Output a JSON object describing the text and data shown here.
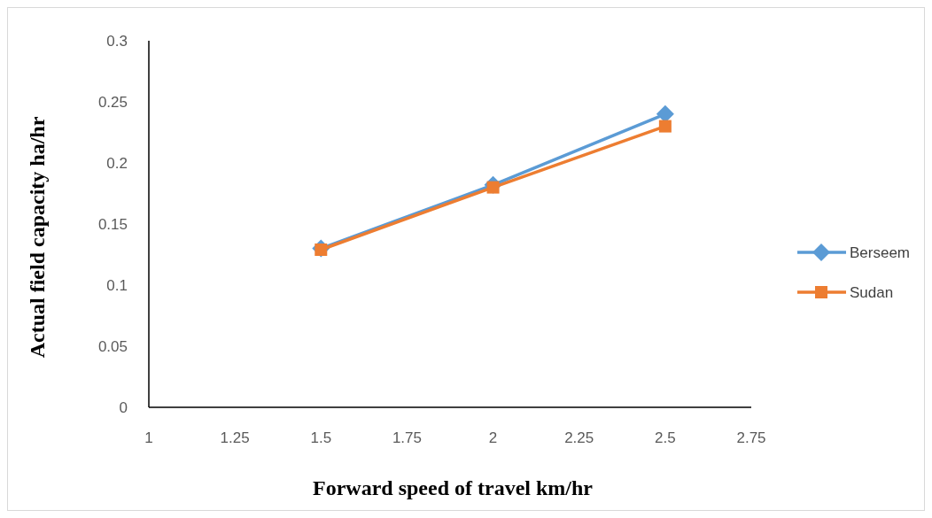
{
  "chart_data": {
    "type": "line",
    "xlabel": "Forward speed of travel km/hr",
    "ylabel": "Actual field capacity ha/hr",
    "xlim": [
      1,
      2.75
    ],
    "xticks": [
      1,
      1.25,
      1.5,
      1.75,
      2,
      2.25,
      2.5,
      2.75
    ],
    "ylim": [
      0,
      0.3
    ],
    "yticks": [
      0,
      0.05,
      0.1,
      0.15,
      0.2,
      0.25,
      0.3
    ],
    "grid": false,
    "legend": "right",
    "series": [
      {
        "name": "Berseem",
        "color": "#5b9bd5",
        "marker": "diamond",
        "x": [
          1.5,
          2,
          2.5
        ],
        "values": [
          0.13,
          0.182,
          0.24
        ]
      },
      {
        "name": "Sudan",
        "color": "#ed7d31",
        "marker": "square",
        "x": [
          1.5,
          2,
          2.5
        ],
        "values": [
          0.129,
          0.18,
          0.23
        ]
      }
    ]
  }
}
